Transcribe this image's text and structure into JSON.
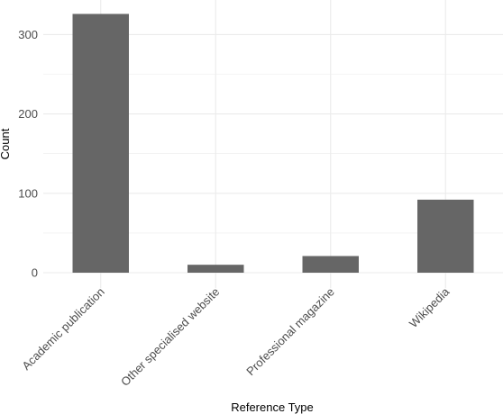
{
  "chart_data": {
    "type": "bar",
    "categories": [
      "Academic publication",
      "Other specialised website",
      "Professional magazine",
      "Wikipedia"
    ],
    "values": [
      326,
      10,
      21,
      92
    ],
    "xlabel": "Reference Type",
    "ylabel": "Count",
    "ylim": [
      -17,
      343
    ],
    "yticks": [
      0,
      100,
      200,
      300
    ],
    "ytick_labels": [
      "0",
      "100",
      "200",
      "300"
    ],
    "grid": true,
    "legend": "none",
    "colors": {
      "bar": "#666666",
      "grid": "#ebebeb",
      "background": "#ffffff"
    }
  }
}
